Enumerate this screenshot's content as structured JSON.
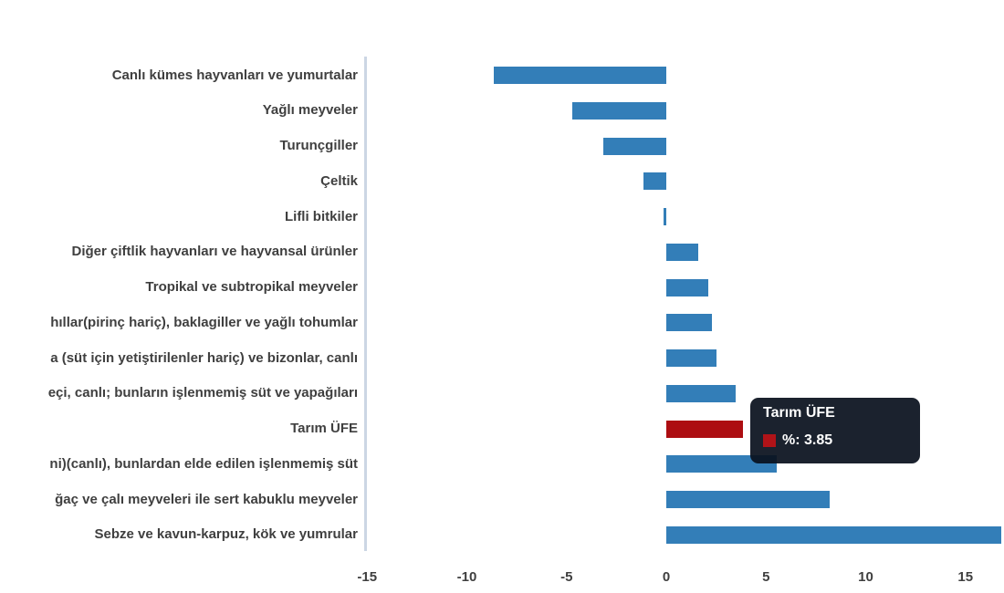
{
  "chart_data": {
    "type": "bar",
    "orientation": "horizontal",
    "title": "",
    "xlabel": "",
    "ylabel": "",
    "grid": false,
    "legend": false,
    "xlim": [
      -15,
      16.9
    ],
    "x_ticks": [
      -15,
      -10,
      -5,
      0,
      5,
      10,
      15
    ],
    "categories": [
      "Canlı kümes hayvanları ve yumurtalar",
      "Yağlı meyveler",
      "Turunçgiller",
      "Çeltik",
      "Lifli bitkiler",
      "Diğer çiftlik hayvanları ve hayvansal ürünler",
      "Tropikal ve subtropikal meyveler",
      "hıllar(pirinç hariç), baklagiller ve yağlı tohumlar",
      "a (süt için yetiştirilenler hariç) ve bizonlar, canlı",
      "eçi, canlı; bunların işlenmemiş süt ve yapağıları",
      "Tarım ÜFE",
      "ni)(canlı), bunlardan elde edilen işlenmemiş süt",
      "ğaç ve çalı meyveleri ile sert kabuklu meyveler",
      "Sebze ve kavun-karpuz, kök ve yumrular"
    ],
    "values": [
      -8.65,
      -4.7,
      -3.15,
      -1.15,
      -0.15,
      1.6,
      2.1,
      2.3,
      2.5,
      3.5,
      3.85,
      5.55,
      8.2,
      16.8
    ],
    "bar_color": "#337eb8",
    "highlight_index": 10,
    "highlight_color": "#ad0e12",
    "axis_line_color": "#ccd6e4",
    "text_color": "#3f3f3f"
  },
  "tooltip": {
    "title": "Tarım ÜFE",
    "swatch_color": "#b01318",
    "value_label": "%: 3.85"
  }
}
